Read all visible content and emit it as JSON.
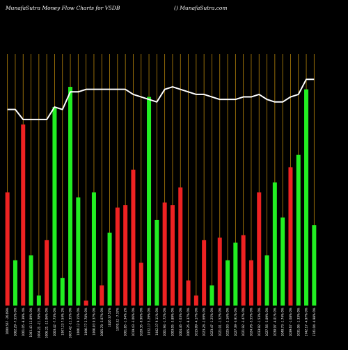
{
  "header": {
    "title": "MunafaSutra  Money  Flow  Charts for V5DB",
    "site": "() MunafaSutra.com"
  },
  "colors": {
    "background": "#000000",
    "gridline": "#b8860b",
    "up_bar": "#22ee22",
    "down_bar": "#ee2222",
    "price_line": "#ffffff"
  },
  "chart_data": {
    "type": "bar",
    "title": "MunafaSutra  Money  Flow  Charts for V5DB",
    "categories": [
      "1000.567 -26.09%",
      "1002.29 -7.55% 0%",
      "1001.05 -8.39% 4%",
      "1003.43 12.89% 0%",
      "1004.21 -21.78% 0%",
      "1006.21 -12.06% 0%",
      "1003.42 -7.73% 0%",
      "1007.23 7.54% 2%",
      "1007.42 -11.35% 0%",
      "1000.12 9.15% 0%",
      "1000.77 2.78% 0%",
      "1000.03 0.37% 0%",
      "1005.78 -3.07% 0%",
      "1026 37.57%",
      "1070.52 -7.37%",
      "1061.85 -1.34% 2%",
      "1019.43 -3.06% 0%",
      "1020.35 -9.96% 0%",
      "1032.17 3.29% 0%",
      "1082.37 9.11% 0%",
      "1001.94 -1.72% 0%",
      "1003.05 -3.89% 0%",
      "1004.46 -7.63% 0%",
      "1005.26 -8.37% 0%",
      "1015.09 -4.17% 0%",
      "1023.28 -2.69% 0%",
      "1023.47 -1.25% 0%",
      "1021.01 -1.52% 0%",
      "1025.93 -2.16% 0%",
      "1027.39 -3.91% 0%",
      "1021.92 -3.47% 0%",
      "1024.78 -3.55% 0%",
      "1033.92 -1.53% 0%",
      "1027.56 -3.09% 0%",
      "1030.97 -4.01% 0%",
      "1040.73 -1.74% 0%",
      "1039.67 -1.68% 0%",
      "1031.06 -1.33% 0%",
      "1742.17 -4.97% 0%",
      "1741.04 -4.98% 0%"
    ],
    "series": [
      {
        "values": [
          0.45,
          0.18,
          0.72,
          0.2,
          0.04,
          0.26,
          0.79,
          0.11,
          0.87,
          0.43,
          0.02,
          0.45,
          0.08,
          0.29,
          0.39,
          0.4,
          0.54,
          0.17,
          0.83,
          0.34,
          0.41,
          0.4,
          0.47,
          0.1,
          0.04,
          0.26,
          0.08,
          0.27,
          0.18,
          0.25,
          0.28,
          0.18,
          0.45,
          0.2,
          0.49,
          0.35,
          0.55,
          0.6,
          0.86,
          0.32
        ],
        "colors": [
          "red",
          "green",
          "red",
          "green",
          "green",
          "red",
          "green",
          "green",
          "green",
          "green",
          "red",
          "green",
          "red",
          "green",
          "red",
          "red",
          "red",
          "red",
          "green",
          "green",
          "red",
          "red",
          "red",
          "red",
          "red",
          "red",
          "green",
          "red",
          "green",
          "green",
          "red",
          "red",
          "red",
          "green",
          "green",
          "green",
          "red",
          "green",
          "green",
          "green"
        ]
      },
      {
        "values": [
          0.78,
          0.78,
          0.74,
          0.74,
          0.74,
          0.74,
          0.79,
          0.78,
          0.85,
          0.85,
          0.86,
          0.86,
          0.86,
          0.86,
          0.86,
          0.86,
          0.84,
          0.83,
          0.82,
          0.81,
          0.86,
          0.87,
          0.86,
          0.85,
          0.84,
          0.84,
          0.83,
          0.82,
          0.82,
          0.82,
          0.83,
          0.83,
          0.84,
          0.82,
          0.81,
          0.81,
          0.83,
          0.84,
          0.9,
          0.9
        ]
      }
    ],
    "ylim": [
      0,
      1
    ]
  }
}
